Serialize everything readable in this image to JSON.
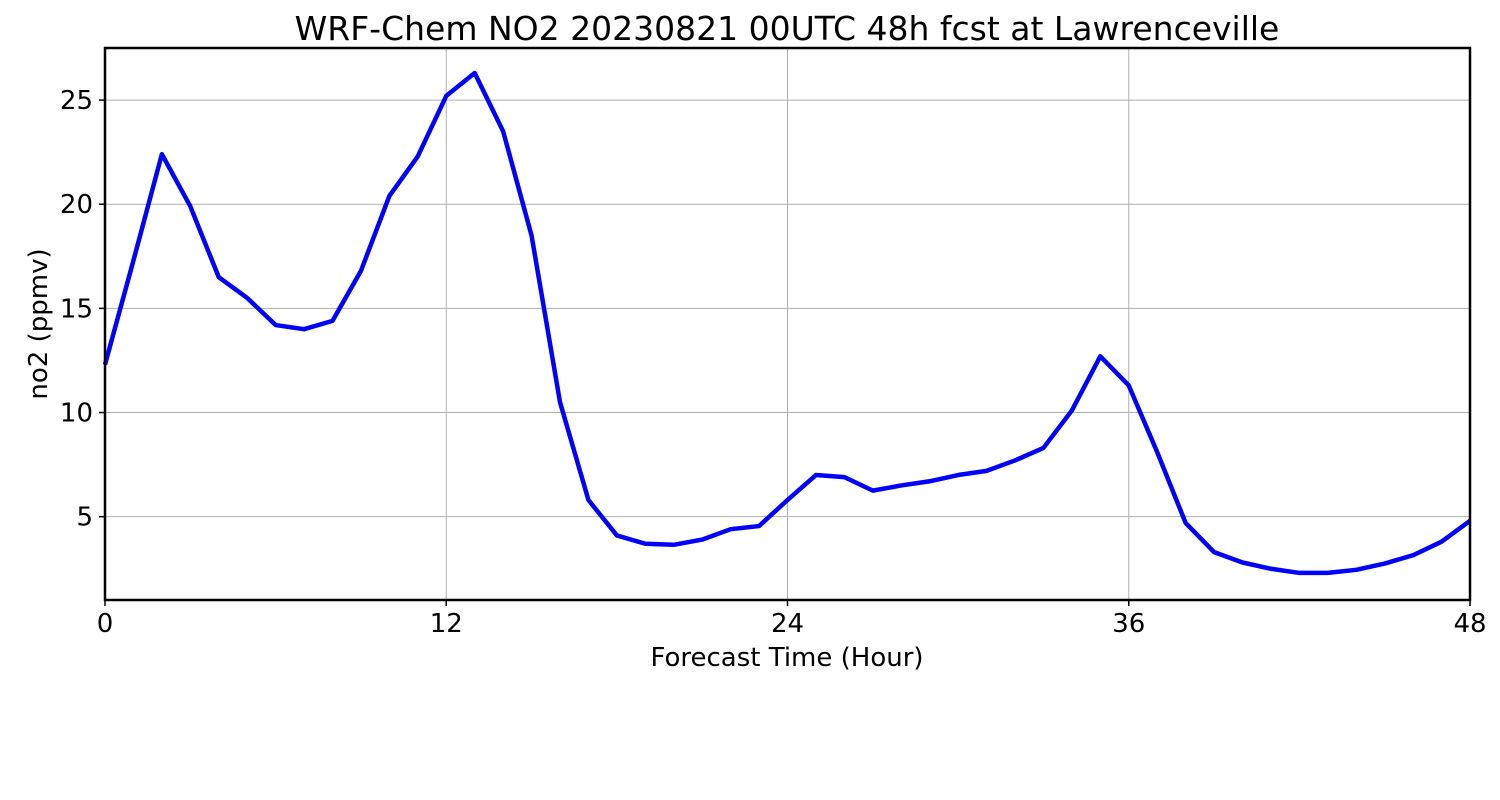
{
  "chart_data": {
    "type": "line",
    "title": "WRF-Chem NO2  20230821 00UTC 48h fcst at Lawrenceville",
    "xlabel": "Forecast Time (Hour)",
    "ylabel": "no2  (ppmv)",
    "xlim": [
      0,
      48
    ],
    "ylim": [
      1,
      27.5
    ],
    "xticks": [
      0,
      12,
      24,
      36,
      48
    ],
    "xtick_labels": [
      "0",
      "12",
      "24",
      "36",
      "48"
    ],
    "yticks": [
      5,
      10,
      15,
      20,
      25
    ],
    "ytick_labels": [
      "5",
      "10",
      "15",
      "20",
      "25"
    ],
    "grid": true,
    "series": [
      {
        "color": "#0000ff",
        "x": [
          0,
          1,
          2,
          3,
          4,
          5,
          6,
          7,
          8,
          9,
          10,
          11,
          12,
          13,
          14,
          15,
          16,
          17,
          18,
          19,
          20,
          21,
          22,
          23,
          24,
          25,
          26,
          27,
          28,
          29,
          30,
          31,
          32,
          33,
          34,
          35,
          36,
          37,
          38,
          39,
          40,
          41,
          42,
          43,
          44,
          45,
          46,
          47,
          48
        ],
        "y": [
          12.3,
          17.3,
          22.4,
          19.9,
          16.5,
          15.5,
          14.2,
          14.0,
          14.4,
          16.8,
          20.4,
          22.3,
          25.2,
          26.3,
          23.5,
          18.5,
          10.5,
          5.8,
          4.1,
          3.7,
          3.65,
          3.9,
          4.4,
          4.55,
          5.8,
          7.0,
          6.9,
          6.25,
          6.5,
          6.7,
          7.0,
          7.2,
          7.7,
          8.3,
          10.1,
          12.7,
          11.3,
          8.1,
          4.7,
          3.3,
          2.8,
          2.5,
          2.3,
          2.3,
          2.45,
          2.75,
          3.15,
          3.8,
          4.8
        ]
      }
    ]
  }
}
